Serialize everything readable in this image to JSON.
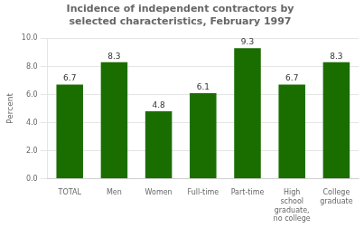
{
  "chart_data": {
    "type": "bar",
    "title": "Incidence of independent contractors by\nselected characteristics, February 1997",
    "categories": [
      "TOTAL",
      "Men",
      "Women",
      "Full-time",
      "Part-time",
      "High\nschool\ngraduate,\nno college",
      "College\ngraduate"
    ],
    "values": [
      6.7,
      8.3,
      4.8,
      6.1,
      9.3,
      6.7,
      8.3
    ],
    "color": "#1a6e00",
    "ylabel": "Percent",
    "ylim": [
      0,
      10.0
    ],
    "yticks": [
      {
        "value": 0.0,
        "label": "0.0"
      },
      {
        "value": 2.0,
        "label": "2.0"
      },
      {
        "value": 4.0,
        "label": "4.0"
      },
      {
        "value": 6.0,
        "label": "6.0"
      },
      {
        "value": 8.0,
        "label": "8.0"
      },
      {
        "value": 10.0,
        "label": "10.0"
      }
    ],
    "grid": true,
    "data_labels": true
  }
}
